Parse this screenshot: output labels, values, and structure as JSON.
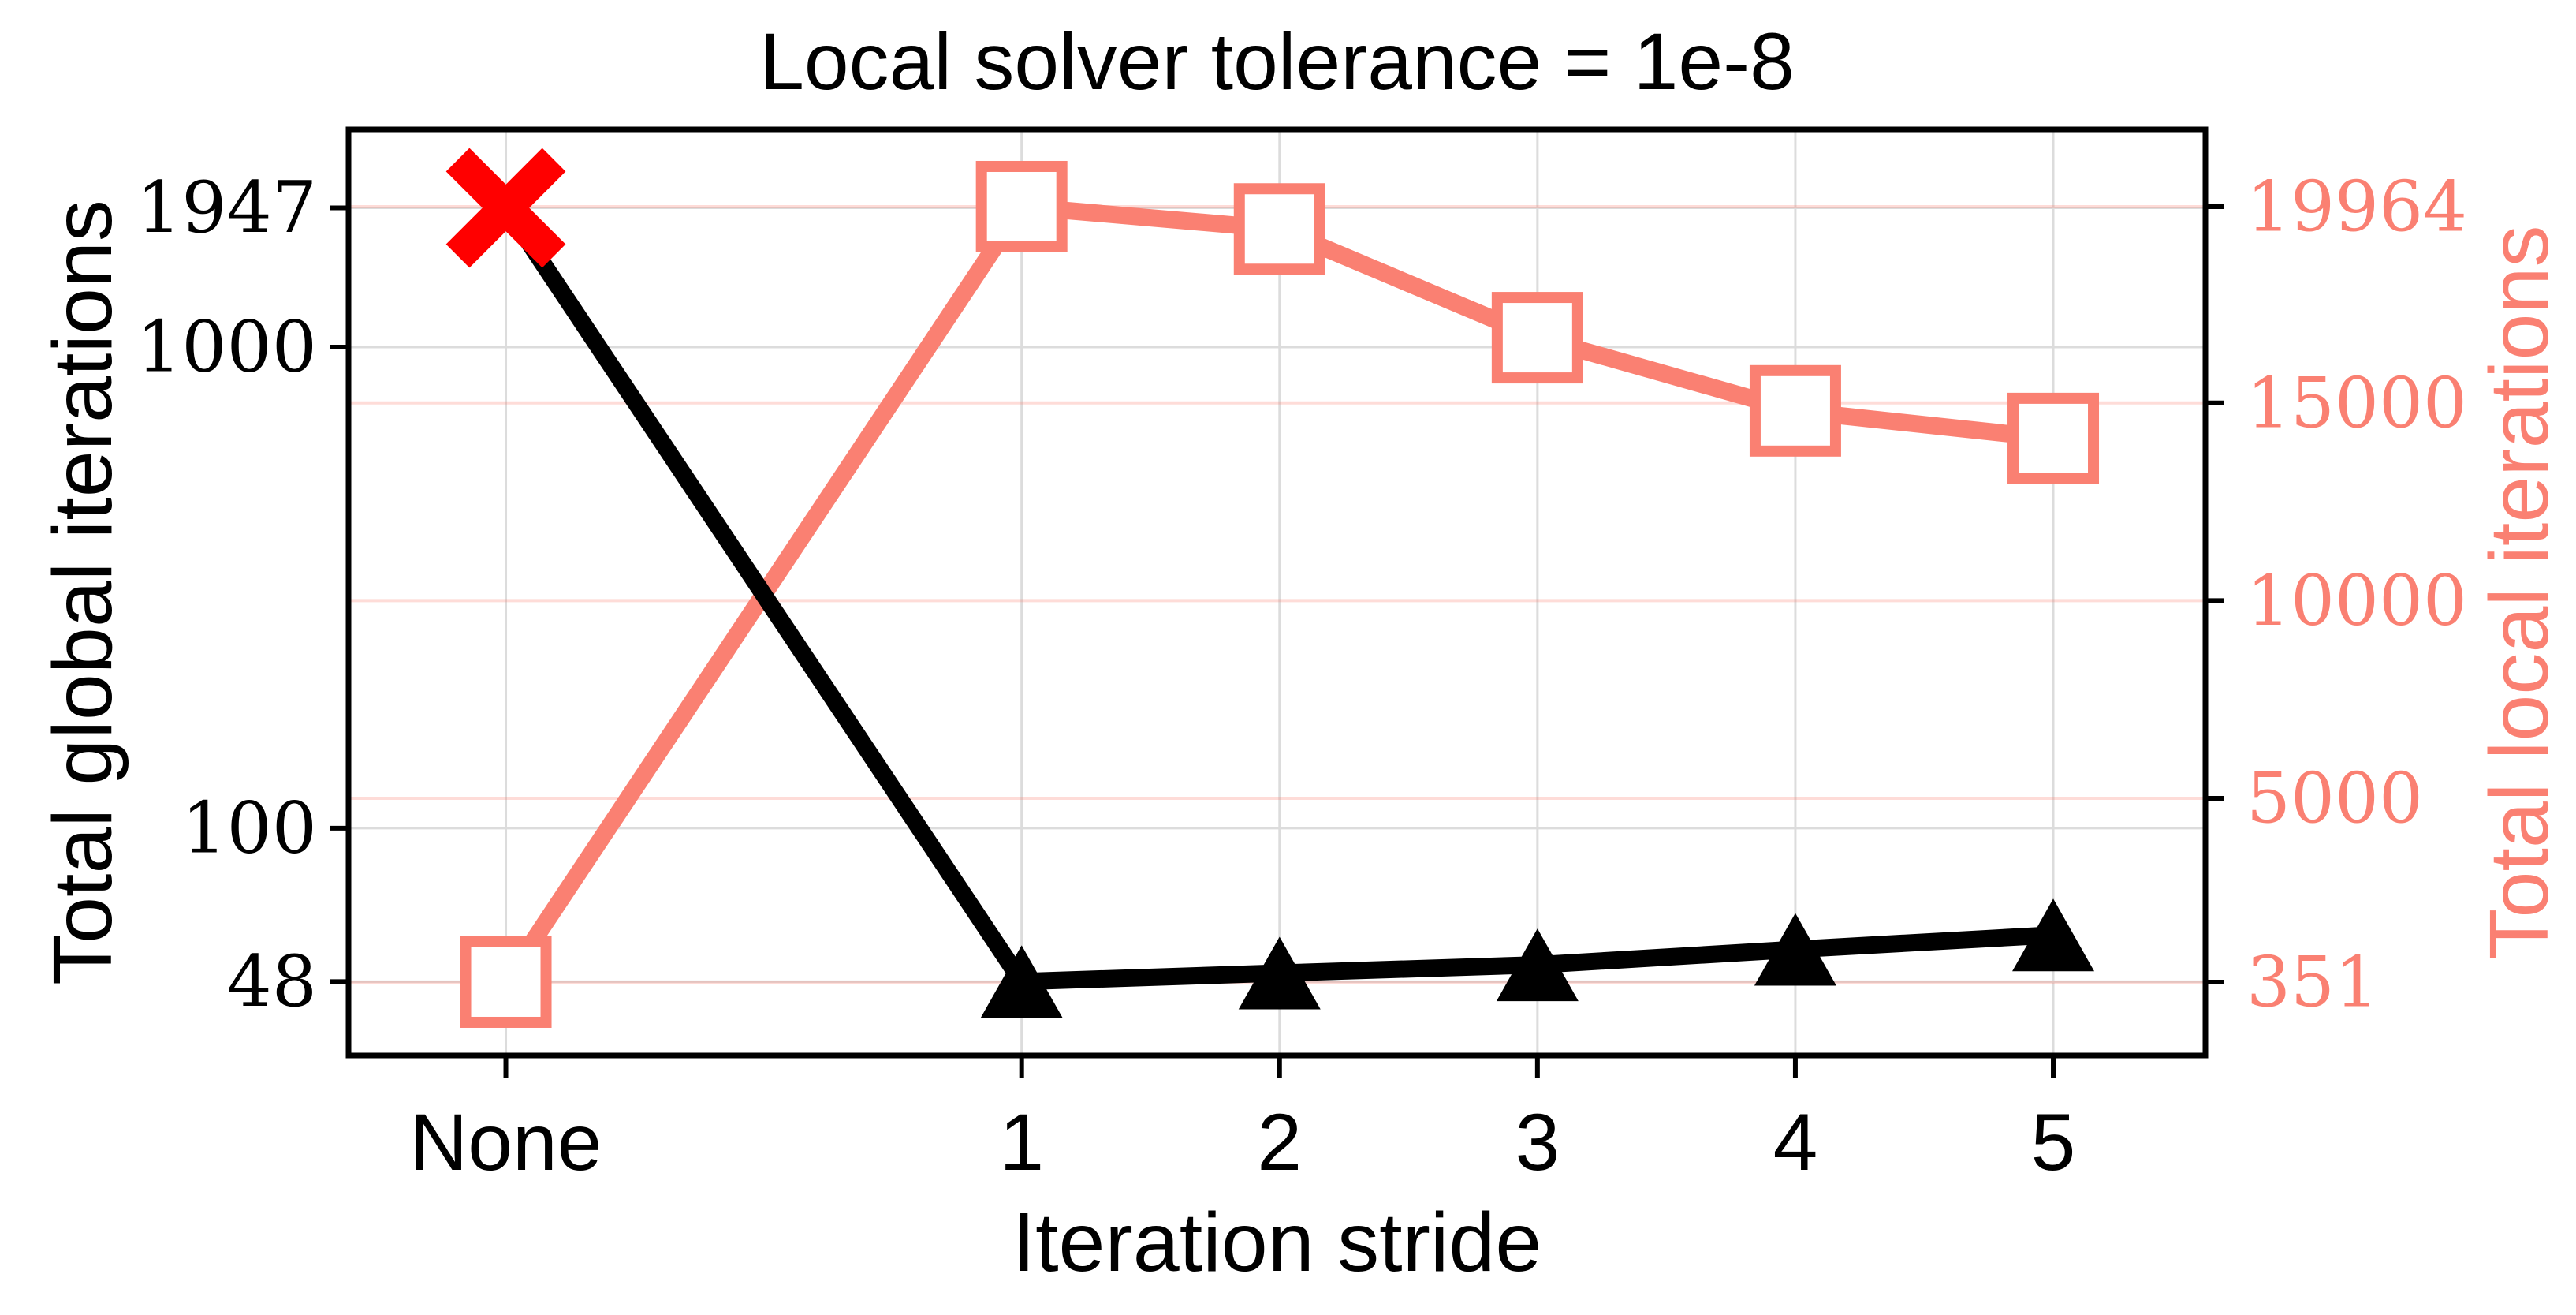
{
  "figure": {
    "background": "#ffffff"
  },
  "chart_data": {
    "type": "line",
    "title": "Local solver tolerance = 1e-8",
    "xlabel": "Iteration stride",
    "categories": [
      "None",
      "1",
      "2",
      "3",
      "4",
      "5"
    ],
    "x_numeric": [
      0,
      2,
      3,
      4,
      5,
      6
    ],
    "xlim": [
      -0.61,
      6.59
    ],
    "grid": true,
    "legend": "none",
    "left_axis": {
      "label": "Total global iterations",
      "scale": "log",
      "color": "#000000",
      "ticks": [
        1947,
        1000,
        100,
        48
      ],
      "range": [
        33.7,
        2835
      ]
    },
    "right_axis": {
      "label": "Total local iterations",
      "scale": "linear",
      "color": "#fa8072",
      "ticks": [
        19964,
        15000,
        10000,
        5000,
        351
      ],
      "range": [
        -1505,
        21919
      ]
    },
    "series": [
      {
        "name": "Total local iterations",
        "axis": "right",
        "color": "#fa8072",
        "marker": "open-square",
        "values": [
          351,
          19964,
          19400,
          16650,
          14800,
          14100
        ]
      },
      {
        "name": "Total global iterations",
        "axis": "left",
        "color": "#000000",
        "marker": "filled-triangle-up",
        "first_point_marker": {
          "shape": "x-cross",
          "color": "#ff0000"
        },
        "values": [
          1947,
          48,
          50,
          52,
          56,
          60
        ]
      }
    ],
    "gridline_colors": {
      "left_axis_grid": "#dcdcdc",
      "right_axis_grid": "rgba(250,128,114,0.28)"
    },
    "spine_color": "#000000"
  }
}
